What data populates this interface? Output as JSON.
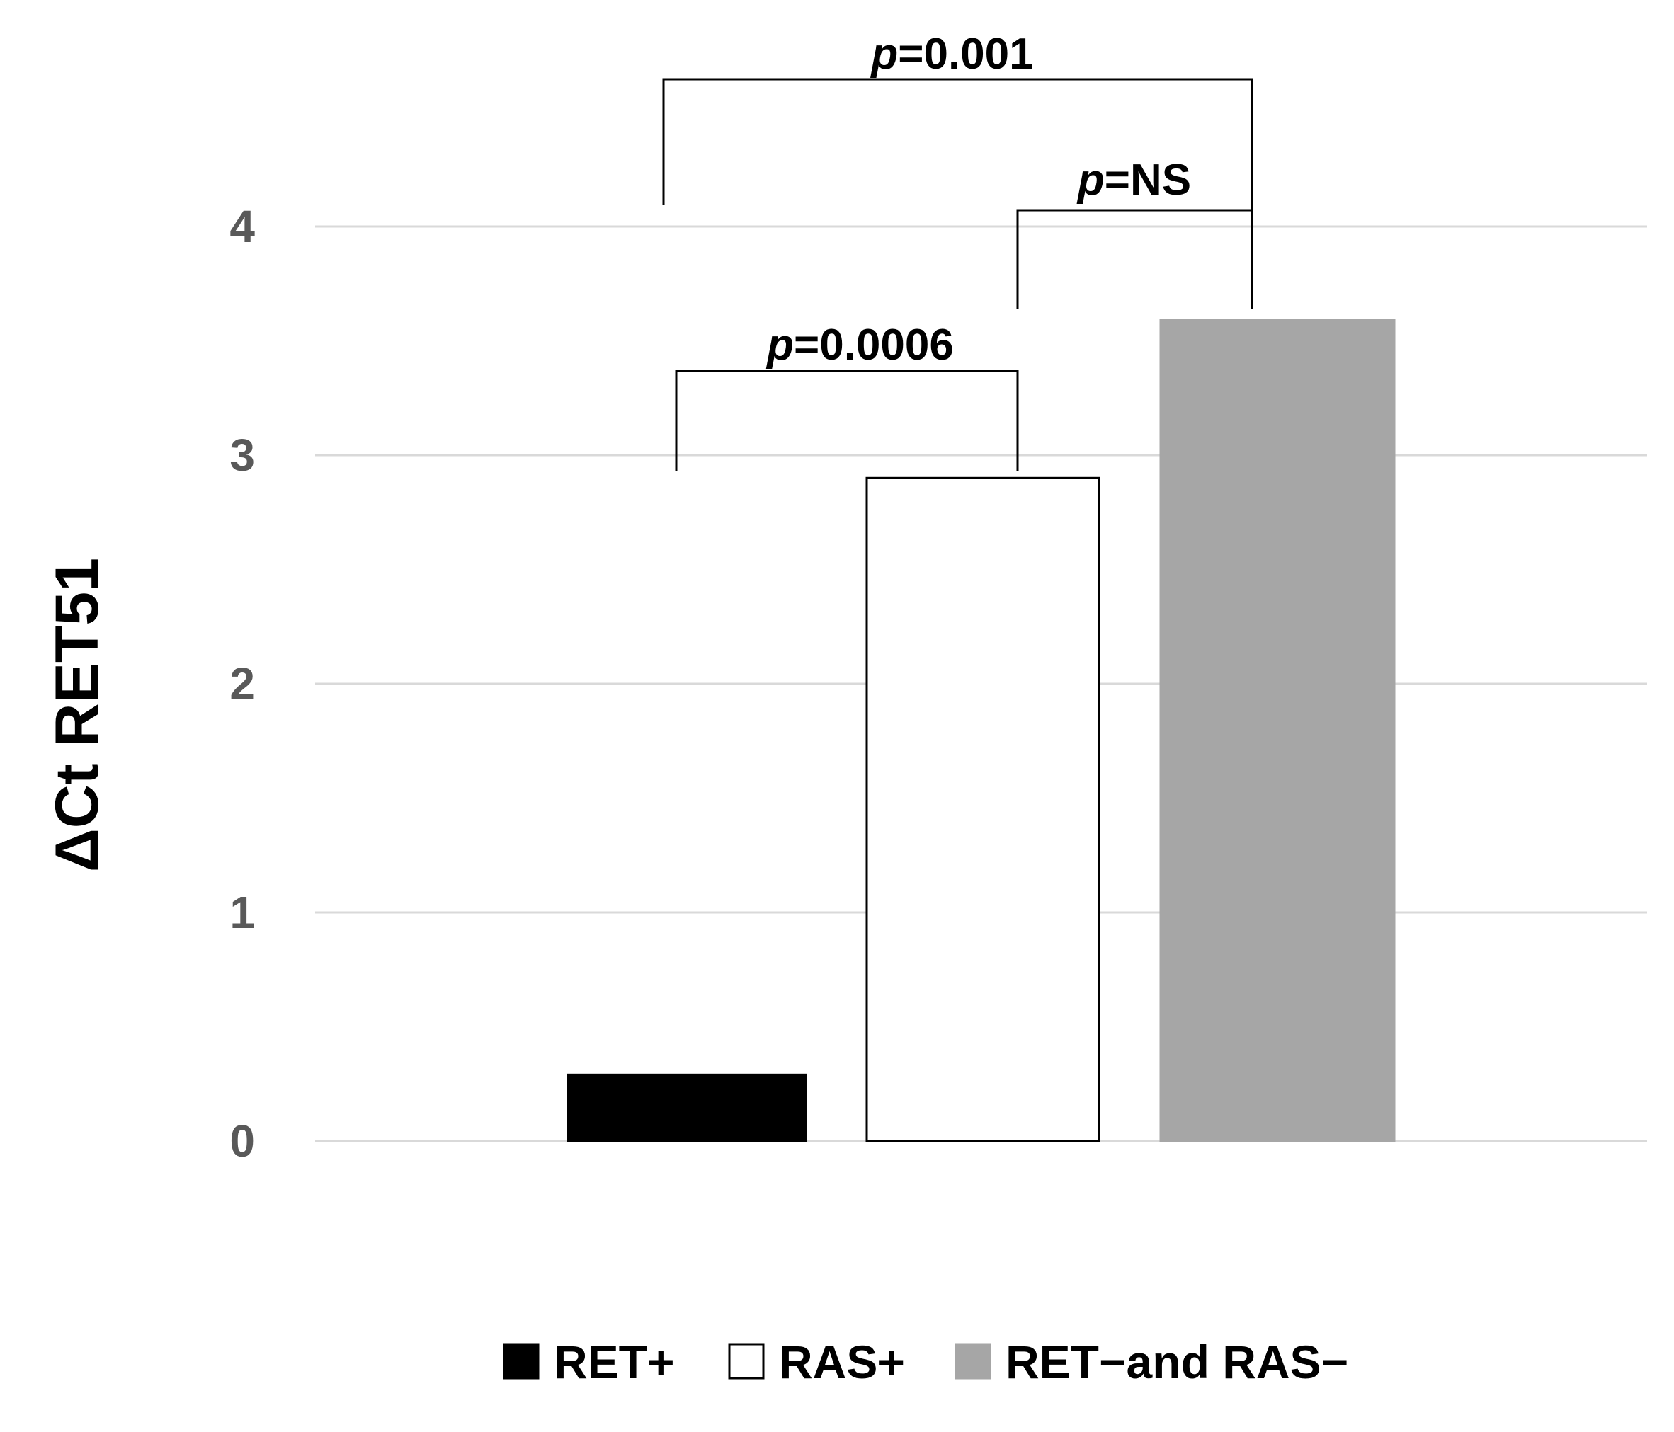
{
  "chart_data": {
    "type": "bar",
    "title": "",
    "xlabel": "",
    "ylabel": "ΔCt RET51",
    "ylim": [
      0,
      4
    ],
    "yticks": [
      0,
      1,
      2,
      3,
      4
    ],
    "grid": true,
    "legend_position": "bottom",
    "categories": [
      "RET+",
      "RAS+",
      "RET−and RAS−"
    ],
    "values": [
      0.29,
      2.9,
      3.59
    ],
    "colors": [
      "#000000",
      "#ffffff",
      "#a6a6a6"
    ],
    "legend": [
      {
        "label": "RET+",
        "color": "#000000"
      },
      {
        "label": "RAS+",
        "color": "#ffffff"
      },
      {
        "label": "RET−and RAS−",
        "color": "#a6a6a6"
      }
    ],
    "annotations": [
      {
        "from": 0,
        "to": 1,
        "p_italic": "p",
        "rest": "=0.0006"
      },
      {
        "from": 1,
        "to": 2,
        "p_italic": "p",
        "rest": "=NS"
      },
      {
        "from": 0,
        "to": 2,
        "p_italic": "p",
        "rest": "=0.001"
      }
    ]
  }
}
